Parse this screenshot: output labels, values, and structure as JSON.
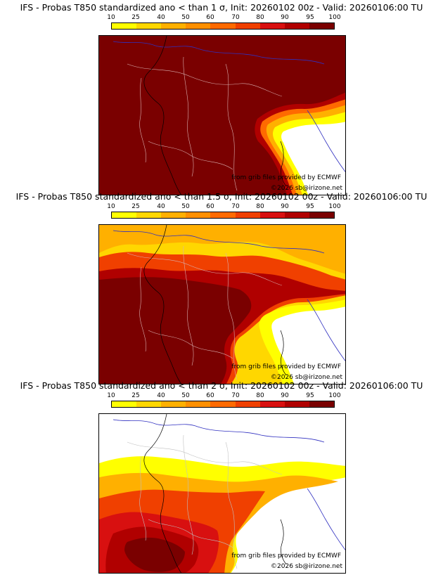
{
  "colorbar": {
    "ticks": [
      "10",
      "25",
      "40",
      "50",
      "60",
      "70",
      "80",
      "90",
      "95",
      "100"
    ],
    "colors": [
      "#ffff00",
      "#ffd700",
      "#ffb000",
      "#ff9000",
      "#ff6a00",
      "#f04000",
      "#d81010",
      "#b00000",
      "#7a0000"
    ]
  },
  "panels": [
    {
      "title": "IFS - Probas T850  standardized ano < than 1 σ, Init: 20260102 00z - Valid: 20260106:00 TU",
      "threshold_sigma": "1",
      "credit": "from grib files provided by ECMWF",
      "copyright": "©2026 sb@irizone.net"
    },
    {
      "title": "IFS - Probas T850  standardized ano < than 1.5 σ, Init: 20260102 00z - Valid: 20260106:00 TU",
      "threshold_sigma": "1.5",
      "credit": "from grib files provided by ECMWF",
      "copyright": "©2026 sb@irizone.net"
    },
    {
      "title": "IFS - Probas T850  standardized ano < than 2 σ, Init: 20260102 00z - Valid: 20260106:00 TU",
      "threshold_sigma": "2",
      "credit": "from grib files provided by ECMWF",
      "copyright": "©2026 sb@irizone.net"
    }
  ]
}
